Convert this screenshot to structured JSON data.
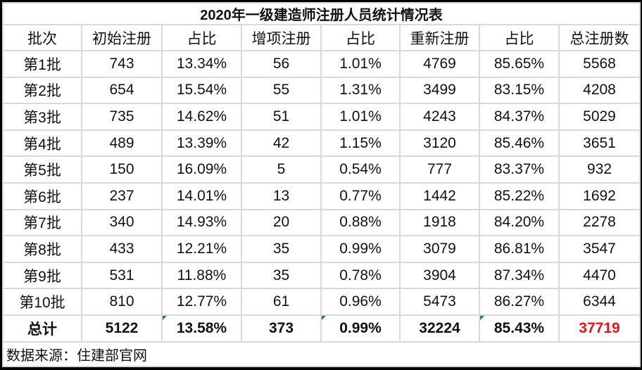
{
  "title": "2020年一级建造师注册人员统计情况表",
  "headers": [
    "批次",
    "初始注册",
    "占比",
    "增项注册",
    "占比",
    "重新注册",
    "占比",
    "总注册数"
  ],
  "rows": [
    [
      "第1批",
      "743",
      "13.34%",
      "56",
      "1.01%",
      "4769",
      "85.65%",
      "5568"
    ],
    [
      "第2批",
      "654",
      "15.54%",
      "55",
      "1.31%",
      "3499",
      "83.15%",
      "4208"
    ],
    [
      "第3批",
      "735",
      "14.62%",
      "51",
      "1.01%",
      "4243",
      "84.37%",
      "5029"
    ],
    [
      "第4批",
      "489",
      "13.39%",
      "42",
      "1.15%",
      "3120",
      "85.46%",
      "3651"
    ],
    [
      "第5批",
      "150",
      "16.09%",
      "5",
      "0.54%",
      "777",
      "83.37%",
      "932"
    ],
    [
      "第6批",
      "237",
      "14.01%",
      "13",
      "0.77%",
      "1442",
      "85.22%",
      "1692"
    ],
    [
      "第7批",
      "340",
      "14.93%",
      "20",
      "0.88%",
      "1918",
      "84.20%",
      "2278"
    ],
    [
      "第8批",
      "433",
      "12.21%",
      "35",
      "0.99%",
      "3079",
      "86.81%",
      "3547"
    ],
    [
      "第9批",
      "531",
      "11.88%",
      "35",
      "0.78%",
      "3904",
      "87.34%",
      "4470"
    ],
    [
      "第10批",
      "810",
      "12.77%",
      "61",
      "0.96%",
      "5473",
      "86.27%",
      "6344"
    ]
  ],
  "total": [
    "总计",
    "5122",
    "13.58%",
    "373",
    "0.99%",
    "32224",
    "85.43%",
    "37719"
  ],
  "source": "数据来源：住建部官网",
  "colors": {
    "total_highlight": "#e8141b",
    "grid": "#d9d9d9",
    "error_marker": "#1e8c2f"
  }
}
